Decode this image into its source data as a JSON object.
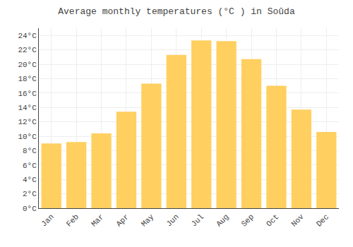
{
  "chart_data": {
    "type": "bar",
    "title": "Average monthly temperatures (°C ) in Soûda",
    "categories": [
      "Jan",
      "Feb",
      "Mar",
      "Apr",
      "May",
      "Jun",
      "Jul",
      "Aug",
      "Sep",
      "Oct",
      "Nov",
      "Dec"
    ],
    "values": [
      9.0,
      9.2,
      10.4,
      13.4,
      17.3,
      21.3,
      23.3,
      23.2,
      20.7,
      17.0,
      13.7,
      10.6
    ],
    "color": "#FFD060",
    "ylim": [
      0,
      25
    ],
    "yticks": [
      {
        "value": 0,
        "label": "0°C"
      },
      {
        "value": 2,
        "label": "2°C"
      },
      {
        "value": 4,
        "label": "4°C"
      },
      {
        "value": 6,
        "label": "6°C"
      },
      {
        "value": 8,
        "label": "8°C"
      },
      {
        "value": 10,
        "label": "10°C"
      },
      {
        "value": 12,
        "label": "12°C"
      },
      {
        "value": 14,
        "label": "14°C"
      },
      {
        "value": 16,
        "label": "16°C"
      },
      {
        "value": 18,
        "label": "18°C"
      },
      {
        "value": 20,
        "label": "20°C"
      },
      {
        "value": 22,
        "label": "22°C"
      },
      {
        "value": 24,
        "label": "24°C"
      }
    ],
    "grid": true
  }
}
